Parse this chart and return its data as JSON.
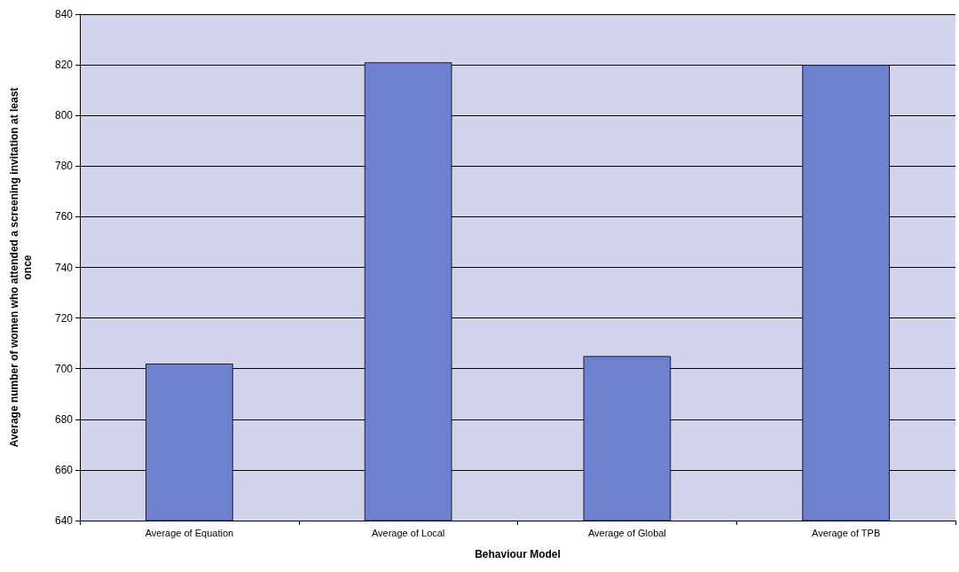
{
  "chart_data": {
    "type": "bar",
    "xlabel": "Behaviour Model",
    "ylabel": "Average number of women who attended a screening invitation at least\nonce",
    "categories": [
      "Average of Equation",
      "Average of Local",
      "Average of Global",
      "Average of TPB"
    ],
    "values": [
      702,
      821,
      705,
      820
    ],
    "color": "#6f80cf",
    "ylim": [
      640,
      840
    ],
    "yticks": [
      640,
      660,
      680,
      700,
      720,
      740,
      760,
      780,
      800,
      820,
      840
    ],
    "grid": "y"
  }
}
